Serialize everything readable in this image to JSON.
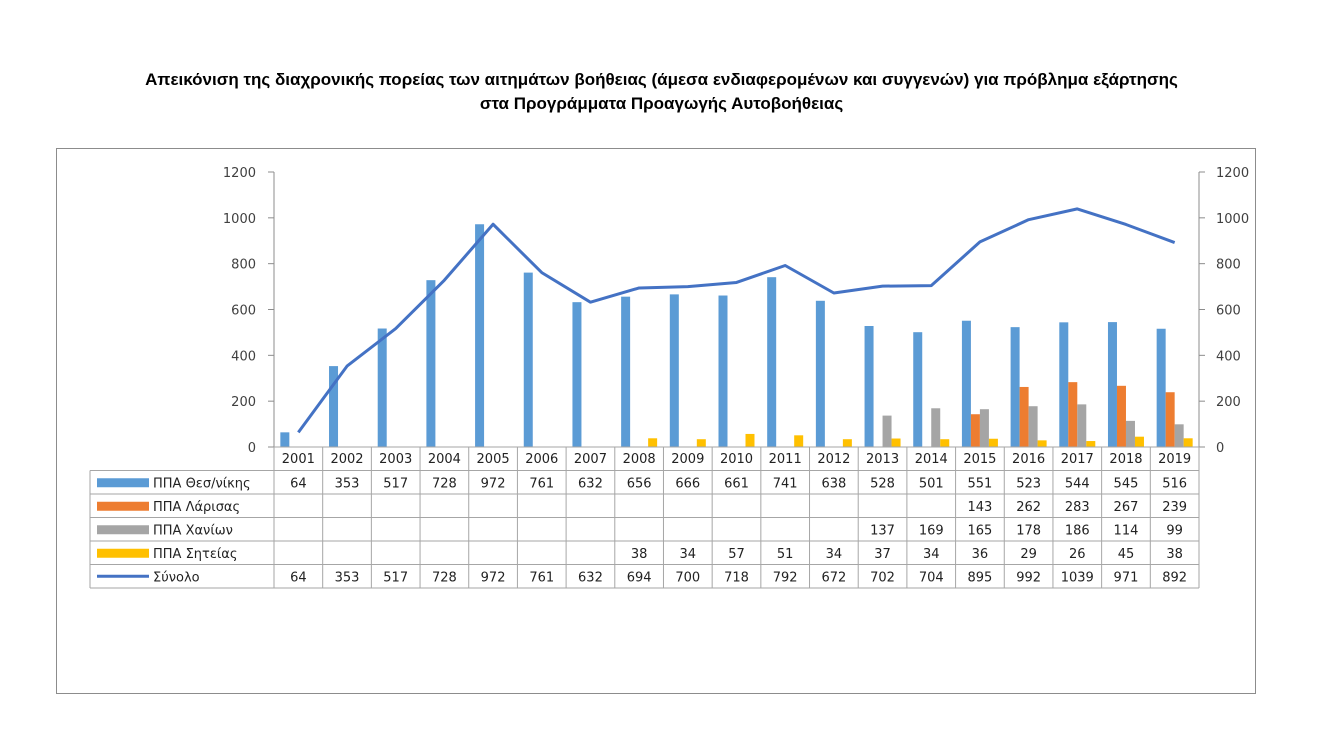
{
  "chart_data": {
    "type": "bar",
    "title_line1": "Απεικόνιση της διαχρονικής πορείας των αιτημάτων βοήθειας (άμεσα ενδιαφερομένων και συγγενών) για πρόβλημα εξάρτησης",
    "title_line2": "στα Προγράμματα Προαγωγής Αυτοβοήθειας",
    "categories": [
      "2001",
      "2002",
      "2003",
      "2004",
      "2005",
      "2006",
      "2007",
      "2008",
      "2009",
      "2010",
      "2011",
      "2012",
      "2013",
      "2014",
      "2015",
      "2016",
      "2017",
      "2018",
      "2019"
    ],
    "ylim": [
      0,
      1200
    ],
    "yticks": [
      0,
      200,
      400,
      600,
      800,
      1000,
      1200
    ],
    "secondary_ylim": [
      0,
      1200
    ],
    "grid": false,
    "legend": "data-table-bottom",
    "series": [
      {
        "name": "ΠΠΑ Θεσ/νίκης",
        "kind": "bar",
        "color": "#5b9bd5",
        "values": [
          64,
          353,
          517,
          728,
          972,
          761,
          632,
          656,
          666,
          661,
          741,
          638,
          528,
          501,
          551,
          523,
          544,
          545,
          516
        ]
      },
      {
        "name": "ΠΠΑ Λάρισας",
        "kind": "bar",
        "color": "#ed7d31",
        "values": [
          null,
          null,
          null,
          null,
          null,
          null,
          null,
          null,
          null,
          null,
          null,
          null,
          null,
          null,
          143,
          262,
          283,
          267,
          239
        ]
      },
      {
        "name": "ΠΠΑ Χανίων",
        "kind": "bar",
        "color": "#a5a5a5",
        "values": [
          null,
          null,
          null,
          null,
          null,
          null,
          null,
          null,
          null,
          null,
          null,
          null,
          137,
          169,
          165,
          178,
          186,
          114,
          99
        ]
      },
      {
        "name": "ΠΠΑ Σητείας",
        "kind": "bar",
        "color": "#ffc000",
        "values": [
          null,
          null,
          null,
          null,
          null,
          null,
          null,
          38,
          34,
          57,
          51,
          34,
          37,
          34,
          36,
          29,
          26,
          45,
          38
        ]
      },
      {
        "name": "Σύνολο",
        "kind": "line",
        "color": "#4472c4",
        "values": [
          64,
          353,
          517,
          728,
          972,
          761,
          632,
          694,
          700,
          718,
          792,
          672,
          702,
          704,
          895,
          992,
          1039,
          971,
          892
        ]
      }
    ]
  }
}
